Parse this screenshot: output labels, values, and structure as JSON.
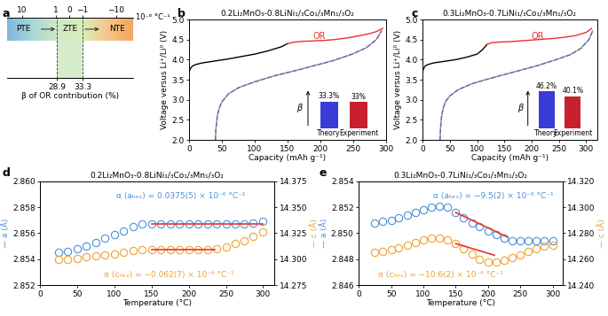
{
  "chart_data": [
    {
      "type": "scale",
      "panel_label": "a",
      "xlabel": "β of OR contribution (%)",
      "xlim": [
        20.5,
        41.8
      ],
      "xticks": [
        28.9,
        33.3
      ],
      "x2lim": [
        27.5,
        -32
      ],
      "x2ticks": [
        10,
        1,
        0,
        {
          "value": -1,
          "label": "−1"
        },
        {
          "value": -10,
          "label": "−10"
        }
      ],
      "x2_unit": "10⁻⁶ °C⁻¹",
      "regions": [
        "PTE",
        "ZTE",
        "NTE"
      ]
    },
    {
      "type": "line",
      "panel_label": "b",
      "title": "0.2Li₂MnO₃-0.8LiNi₁/₃Co₁/₃Mn₁/₃O₂",
      "xlabel": "Capacity (mAh g⁻¹)",
      "ylabel": "Voltage versus Li⁺/Li⁰ (V)",
      "xlim": [
        0,
        300
      ],
      "xticks": [
        0,
        50,
        100,
        150,
        200,
        250,
        300
      ],
      "ylim": [
        2,
        5
      ],
      "yticks": [
        {
          "value": 2,
          "label": "2.0"
        },
        2.5,
        {
          "value": 3,
          "label": "3.0"
        },
        3.5,
        {
          "value": 4,
          "label": "4.0"
        },
        4.5,
        {
          "value": 5,
          "label": "5.0"
        }
      ],
      "series": [
        {
          "color": "#000000",
          "line_style": "solid",
          "x": [
            0,
            2,
            5,
            10,
            20,
            40,
            60,
            80,
            100,
            120,
            140,
            150
          ],
          "values": [
            3.7,
            3.78,
            3.84,
            3.88,
            3.92,
            3.97,
            4.02,
            4.08,
            4.14,
            4.22,
            4.32,
            4.4
          ]
        },
        {
          "color": "#e8322c",
          "line_style": "solid",
          "x": [
            150,
            160,
            175,
            190,
            205,
            220,
            240,
            260,
            275,
            285,
            295
          ],
          "values": [
            4.4,
            4.44,
            4.46,
            4.47,
            4.48,
            4.5,
            4.54,
            4.6,
            4.65,
            4.7,
            4.78
          ]
        },
        {
          "color": "#9a9a9a",
          "line_style": "solid",
          "x": [
            40,
            41,
            43,
            46,
            50,
            60,
            75,
            100,
            130,
            160,
            190,
            220,
            250,
            270,
            285,
            293
          ],
          "values": [
            2.0,
            2.3,
            2.6,
            2.8,
            2.95,
            3.15,
            3.3,
            3.45,
            3.6,
            3.72,
            3.85,
            3.98,
            4.15,
            4.3,
            4.5,
            4.72
          ]
        },
        {
          "color": "#7a5fb0",
          "line_style": "dashed",
          "x": [
            40,
            41,
            43,
            46,
            50,
            60,
            75,
            100,
            130,
            160,
            190,
            220,
            250,
            270,
            285,
            293
          ],
          "values": [
            2.0,
            2.3,
            2.6,
            2.8,
            2.95,
            3.15,
            3.3,
            3.45,
            3.6,
            3.72,
            3.85,
            3.98,
            4.15,
            4.3,
            4.5,
            4.72
          ]
        }
      ],
      "annotations": [
        {
          "text": "OR",
          "color": "#e8322c"
        }
      ],
      "inset": {
        "type": "bar",
        "categories": [
          "Theory",
          "Experiment"
        ],
        "values": [
          33.3,
          33
        ],
        "value_labels": [
          "33.3%",
          "33%"
        ],
        "colors": [
          "#3b3bd6",
          "#c8202e"
        ],
        "ylim": [
          0,
          50
        ],
        "ylabel": "β"
      }
    },
    {
      "type": "line",
      "panel_label": "c",
      "title": "0.3Li₂MnO₃-0.7LiNi₁/₃Co₁/₃Mn₁/₃O₂",
      "xlabel": "Capacity (mAh g⁻¹)",
      "ylabel": "Voltage versus Li⁺/Li⁰ (V)",
      "xlim": [
        0,
        320
      ],
      "xticks": [
        0,
        50,
        100,
        150,
        200,
        250,
        300
      ],
      "ylim": [
        2,
        5
      ],
      "yticks": [
        {
          "value": 2,
          "label": "2.0"
        },
        2.5,
        {
          "value": 3,
          "label": "3.0"
        },
        3.5,
        {
          "value": 4,
          "label": "4.0"
        },
        4.5,
        {
          "value": 5,
          "label": "5.0"
        }
      ],
      "series": [
        {
          "color": "#000000",
          "line_style": "solid",
          "x": [
            0,
            2,
            5,
            10,
            20,
            40,
            60,
            80,
            100,
            110,
            118
          ],
          "values": [
            3.7,
            3.78,
            3.85,
            3.88,
            3.92,
            3.96,
            4.0,
            4.06,
            4.14,
            4.25,
            4.38
          ]
        },
        {
          "color": "#e8322c",
          "line_style": "solid",
          "x": [
            118,
            125,
            140,
            160,
            180,
            200,
            220,
            240,
            260,
            280,
            300,
            310
          ],
          "values": [
            4.38,
            4.42,
            4.44,
            4.45,
            4.47,
            4.49,
            4.51,
            4.53,
            4.56,
            4.6,
            4.68,
            4.78
          ]
        },
        {
          "color": "#9a9a9a",
          "line_style": "solid",
          "x": [
            32,
            33,
            35,
            38,
            42,
            50,
            65,
            90,
            120,
            150,
            180,
            210,
            240,
            270,
            290,
            305,
            312
          ],
          "values": [
            2.0,
            2.3,
            2.6,
            2.8,
            2.95,
            3.1,
            3.25,
            3.4,
            3.52,
            3.63,
            3.74,
            3.85,
            3.98,
            4.12,
            4.28,
            4.5,
            4.72
          ]
        },
        {
          "color": "#7a5fb0",
          "line_style": "dashed",
          "x": [
            32,
            33,
            35,
            38,
            42,
            50,
            65,
            90,
            120,
            150,
            180,
            210,
            240,
            270,
            290,
            305,
            312
          ],
          "values": [
            2.0,
            2.3,
            2.6,
            2.8,
            2.95,
            3.1,
            3.25,
            3.4,
            3.52,
            3.63,
            3.74,
            3.85,
            3.98,
            4.12,
            4.28,
            4.5,
            4.72
          ]
        }
      ],
      "annotations": [
        {
          "text": "OR",
          "color": "#e8322c"
        }
      ],
      "inset": {
        "type": "bar",
        "categories": [
          "Theory",
          "Experiment"
        ],
        "values": [
          46.2,
          40.1
        ],
        "value_labels": [
          "46.2%",
          "40.1%"
        ],
        "colors": [
          "#3b3bd6",
          "#c8202e"
        ],
        "ylim": [
          0,
          50
        ],
        "ylabel": "β"
      }
    },
    {
      "type": "scatter",
      "panel_label": "d",
      "title": "0.2Li₂MnO₃-0.8LiNi₁/₃Co₁/₃Mn₁/₃O₂",
      "xlabel": "Temperature (°C)",
      "ylabel": "— a (Å)",
      "y2label": "— c (Å)",
      "xlim": [
        0,
        315
      ],
      "xticks": [
        0,
        50,
        100,
        150,
        200,
        250,
        300
      ],
      "ylim": [
        2.852,
        2.86
      ],
      "yticks": [
        2.852,
        2.854,
        2.856,
        2.858,
        {
          "value": 2.86,
          "label": "2.860"
        }
      ],
      "y2lim": [
        14.275,
        14.375
      ],
      "y2ticks": [
        14.275,
        {
          "value": 14.3,
          "label": "14.300"
        },
        14.325,
        {
          "value": 14.35,
          "label": "14.350"
        },
        14.375
      ],
      "x": [
        25,
        37,
        50,
        62,
        75,
        87,
        100,
        112,
        125,
        137,
        150,
        162,
        175,
        187,
        200,
        212,
        225,
        237,
        250,
        262,
        275,
        287,
        300
      ],
      "series": [
        {
          "color": "#4a90d9",
          "marker": "o",
          "values": [
            2.8545,
            2.8546,
            2.8548,
            2.855,
            2.8553,
            2.8556,
            2.8559,
            2.8562,
            2.8565,
            2.8567,
            2.8567,
            2.8567,
            2.8567,
            2.8567,
            2.8567,
            2.8567,
            2.8567,
            2.8567,
            2.8567,
            2.8567,
            2.8567,
            2.8568,
            2.8569
          ]
        },
        {
          "color": "#f0a030",
          "marker": "o",
          "axis": "y2",
          "values": [
            14.3,
            14.3,
            14.301,
            14.302,
            14.303,
            14.304,
            14.305,
            14.307,
            14.308,
            14.309,
            14.309,
            14.309,
            14.309,
            14.309,
            14.309,
            14.309,
            14.309,
            14.31,
            14.312,
            14.315,
            14.318,
            14.322,
            14.326
          ]
        },
        {
          "type": "line",
          "color": "#e8322c",
          "x": [
            150,
            300
          ],
          "values": [
            2.8567,
            2.8567
          ]
        },
        {
          "type": "line",
          "color": "#e8322c",
          "axis": "y2",
          "x": [
            150,
            235
          ],
          "values": [
            14.309,
            14.309
          ]
        }
      ],
      "annotations": [
        {
          "text": "α (aₕₑₓ) = 0.0375(5) × 10⁻⁶ °C⁻¹",
          "color": "#4a90d9"
        },
        {
          "text": "α (cₕₑₓ) = −0.062(7) × 10⁻⁶ °C⁻¹",
          "color": "#f0a030"
        }
      ]
    },
    {
      "type": "scatter",
      "panel_label": "e",
      "title": "0.3Li₂MnO₃-0.7LiNi₁/₃Co₁/₃Mn₁/₃O₂",
      "xlabel": "Temperature (°C)",
      "ylabel": "— a (Å)",
      "y2label": "— c (Å)",
      "xlim": [
        0,
        315
      ],
      "xticks": [
        0,
        50,
        100,
        150,
        200,
        250,
        300
      ],
      "ylim": [
        2.846,
        2.854
      ],
      "yticks": [
        2.846,
        2.848,
        {
          "value": 2.85,
          "label": "2.850"
        },
        2.852,
        2.854
      ],
      "y2lim": [
        14.24,
        14.32
      ],
      "y2ticks": [
        {
          "value": 14.24,
          "label": "14.240"
        },
        {
          "value": 14.26,
          "label": "14.260"
        },
        {
          "value": 14.28,
          "label": "14.280"
        },
        {
          "value": 14.3,
          "label": "14.300"
        },
        {
          "value": 14.32,
          "label": "14.320"
        }
      ],
      "x": [
        25,
        37,
        50,
        62,
        75,
        87,
        100,
        112,
        125,
        137,
        150,
        162,
        175,
        187,
        200,
        212,
        225,
        237,
        250,
        262,
        275,
        287,
        300
      ],
      "series": [
        {
          "color": "#4a90d9",
          "marker": "o",
          "values": [
            2.8508,
            2.8509,
            2.851,
            2.8512,
            2.8514,
            2.8516,
            2.8518,
            2.852,
            2.8521,
            2.852,
            2.8516,
            2.8512,
            2.8508,
            2.8505,
            2.8502,
            2.8499,
            2.8496,
            2.8494,
            2.8494,
            2.8494,
            2.8494,
            2.8494,
            2.8494
          ]
        },
        {
          "color": "#f0a030",
          "marker": "o",
          "axis": "y2",
          "values": [
            14.265,
            14.266,
            14.267,
            14.269,
            14.271,
            14.273,
            14.275,
            14.276,
            14.276,
            14.275,
            14.272,
            14.268,
            14.264,
            14.26,
            14.258,
            14.258,
            14.259,
            14.261,
            14.263,
            14.266,
            14.268,
            14.27,
            14.271
          ]
        },
        {
          "type": "line",
          "color": "#e8322c",
          "x": [
            150,
            230
          ],
          "values": [
            2.8516,
            2.8497
          ]
        },
        {
          "type": "line",
          "color": "#e8322c",
          "axis": "y2",
          "x": [
            150,
            210
          ],
          "values": [
            14.272,
            14.263
          ]
        }
      ],
      "annotations": [
        {
          "text": "α (aₕₑₓ) = −9.5(2) × 10⁻⁶ °C⁻¹",
          "color": "#4a90d9"
        },
        {
          "text": "α (cₕₑₓ) = −10.6(2) × 10⁻⁶ °C⁻¹",
          "color": "#f0a030"
        }
      ]
    }
  ]
}
